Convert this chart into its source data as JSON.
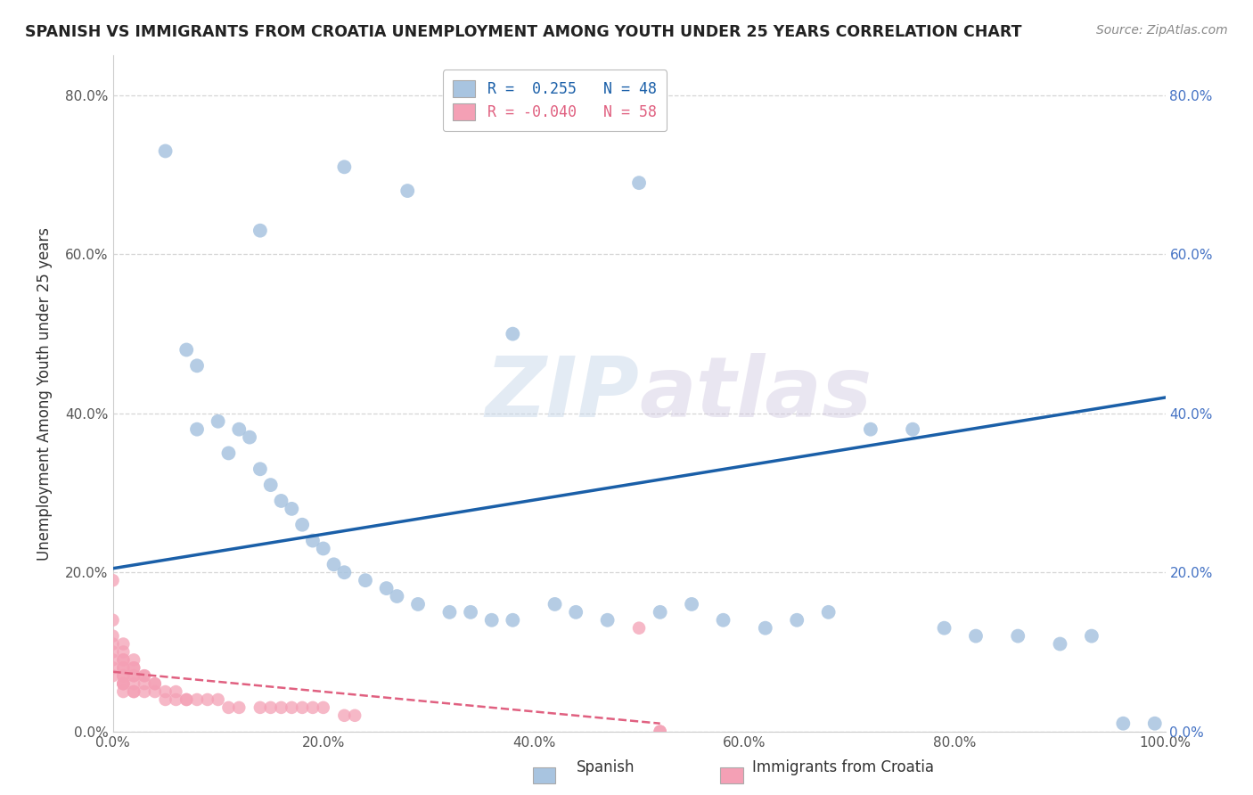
{
  "title": "SPANISH VS IMMIGRANTS FROM CROATIA UNEMPLOYMENT AMONG YOUTH UNDER 25 YEARS CORRELATION CHART",
  "source": "Source: ZipAtlas.com",
  "ylabel": "Unemployment Among Youth under 25 years",
  "xlim": [
    0.0,
    1.0
  ],
  "ylim": [
    0.0,
    0.85
  ],
  "xticks": [
    0.0,
    0.2,
    0.4,
    0.6,
    0.8,
    1.0
  ],
  "xticklabels": [
    "0.0%",
    "20.0%",
    "40.0%",
    "60.0%",
    "80.0%",
    "100.0%"
  ],
  "yticks": [
    0.0,
    0.2,
    0.4,
    0.6,
    0.8
  ],
  "yticklabels": [
    "0.0%",
    "20.0%",
    "40.0%",
    "60.0%",
    "80.0%"
  ],
  "legend_r_blue": "0.255",
  "legend_n_blue": "48",
  "legend_r_pink": "-0.040",
  "legend_n_pink": "58",
  "blue_color": "#a8c4e0",
  "pink_color": "#f4a0b5",
  "trendline_blue_color": "#1a5fa8",
  "trendline_pink_color": "#e06080",
  "watermark_zip": "ZIP",
  "watermark_atlas": "atlas",
  "legend_label_blue": "Spanish",
  "legend_label_pink": "Immigrants from Croatia",
  "blue_scatter_x": [
    0.05,
    0.22,
    0.28,
    0.14,
    0.38,
    0.5,
    0.07,
    0.08,
    0.08,
    0.1,
    0.11,
    0.12,
    0.13,
    0.14,
    0.15,
    0.16,
    0.17,
    0.18,
    0.19,
    0.2,
    0.21,
    0.22,
    0.24,
    0.26,
    0.27,
    0.29,
    0.32,
    0.34,
    0.36,
    0.38,
    0.42,
    0.44,
    0.47,
    0.52,
    0.55,
    0.58,
    0.62,
    0.65,
    0.68,
    0.72,
    0.76,
    0.79,
    0.82,
    0.86,
    0.9,
    0.93,
    0.96,
    0.99
  ],
  "blue_scatter_y": [
    0.73,
    0.71,
    0.68,
    0.63,
    0.5,
    0.69,
    0.48,
    0.46,
    0.38,
    0.39,
    0.35,
    0.38,
    0.37,
    0.33,
    0.31,
    0.29,
    0.28,
    0.26,
    0.24,
    0.23,
    0.21,
    0.2,
    0.19,
    0.18,
    0.17,
    0.16,
    0.15,
    0.15,
    0.14,
    0.14,
    0.16,
    0.15,
    0.14,
    0.15,
    0.16,
    0.14,
    0.13,
    0.14,
    0.15,
    0.38,
    0.38,
    0.13,
    0.12,
    0.12,
    0.11,
    0.12,
    0.01,
    0.01
  ],
  "pink_scatter_x": [
    0.0,
    0.0,
    0.0,
    0.0,
    0.0,
    0.0,
    0.0,
    0.0,
    0.01,
    0.01,
    0.01,
    0.01,
    0.01,
    0.01,
    0.01,
    0.01,
    0.01,
    0.01,
    0.01,
    0.01,
    0.02,
    0.02,
    0.02,
    0.02,
    0.02,
    0.02,
    0.02,
    0.02,
    0.03,
    0.03,
    0.03,
    0.03,
    0.04,
    0.04,
    0.04,
    0.05,
    0.05,
    0.06,
    0.06,
    0.07,
    0.07,
    0.08,
    0.09,
    0.1,
    0.11,
    0.12,
    0.14,
    0.15,
    0.16,
    0.17,
    0.18,
    0.19,
    0.2,
    0.22,
    0.23,
    0.5,
    0.52,
    0.52
  ],
  "pink_scatter_y": [
    0.19,
    0.14,
    0.12,
    0.11,
    0.1,
    0.09,
    0.08,
    0.07,
    0.11,
    0.1,
    0.09,
    0.09,
    0.08,
    0.08,
    0.07,
    0.07,
    0.06,
    0.06,
    0.06,
    0.05,
    0.09,
    0.08,
    0.08,
    0.07,
    0.07,
    0.06,
    0.05,
    0.05,
    0.07,
    0.07,
    0.06,
    0.05,
    0.06,
    0.06,
    0.05,
    0.05,
    0.04,
    0.05,
    0.04,
    0.04,
    0.04,
    0.04,
    0.04,
    0.04,
    0.03,
    0.03,
    0.03,
    0.03,
    0.03,
    0.03,
    0.03,
    0.03,
    0.03,
    0.02,
    0.02,
    0.13,
    0.0,
    0.0
  ],
  "background_color": "#ffffff",
  "grid_color": "#cccccc",
  "trendline_blue_start_x": 0.0,
  "trendline_blue_start_y": 0.205,
  "trendline_blue_end_x": 1.0,
  "trendline_blue_end_y": 0.42,
  "trendline_pink_start_x": 0.0,
  "trendline_pink_start_y": 0.075,
  "trendline_pink_end_x": 0.52,
  "trendline_pink_end_y": 0.01
}
